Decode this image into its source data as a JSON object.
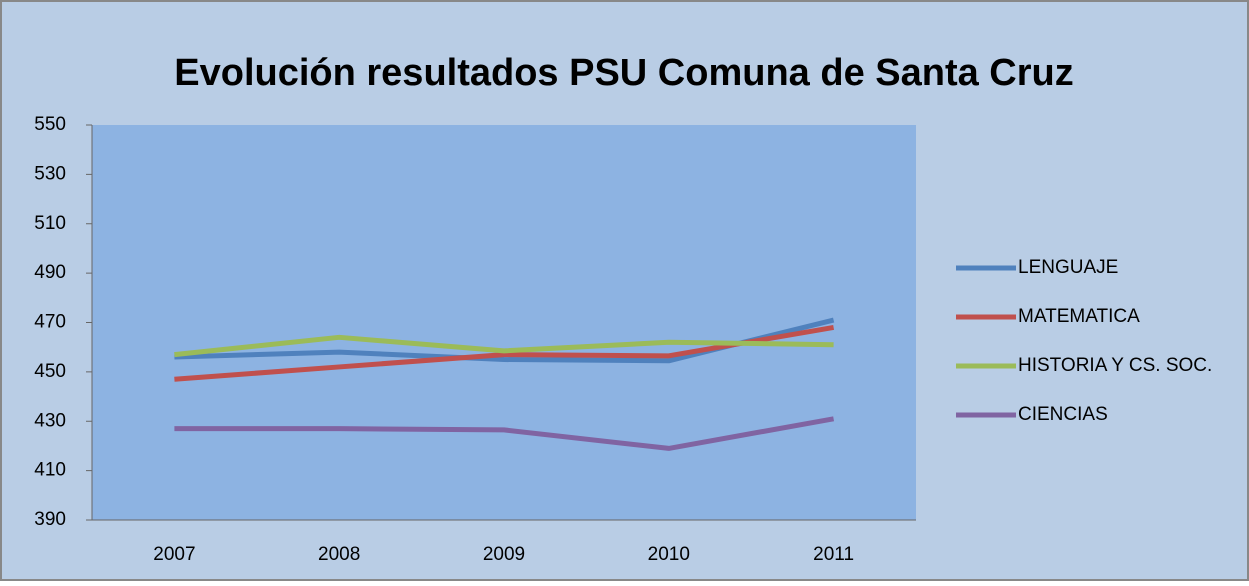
{
  "chart_data": {
    "type": "line",
    "title": "Evolución resultados PSU Comuna de Santa Cruz",
    "categories": [
      "2007",
      "2008",
      "2009",
      "2010",
      "2011"
    ],
    "series": [
      {
        "name": "LENGUAJE",
        "color": "#4f81bd",
        "values": [
          456,
          458,
          455,
          454.5,
          471
        ]
      },
      {
        "name": "MATEMATICA",
        "color": "#c0504d",
        "values": [
          447,
          452,
          457,
          456.5,
          468
        ]
      },
      {
        "name": "HISTORIA Y CS. SOC.",
        "color": "#9bbb59",
        "values": [
          457,
          464,
          458.5,
          462,
          461
        ]
      },
      {
        "name": "CIENCIAS",
        "color": "#8064a2",
        "values": [
          427,
          427,
          426.5,
          419,
          431
        ]
      }
    ],
    "ylim": [
      390,
      550
    ],
    "yticks": [
      390,
      410,
      430,
      450,
      470,
      490,
      510,
      530,
      550
    ],
    "grid": false,
    "legend": "right"
  }
}
